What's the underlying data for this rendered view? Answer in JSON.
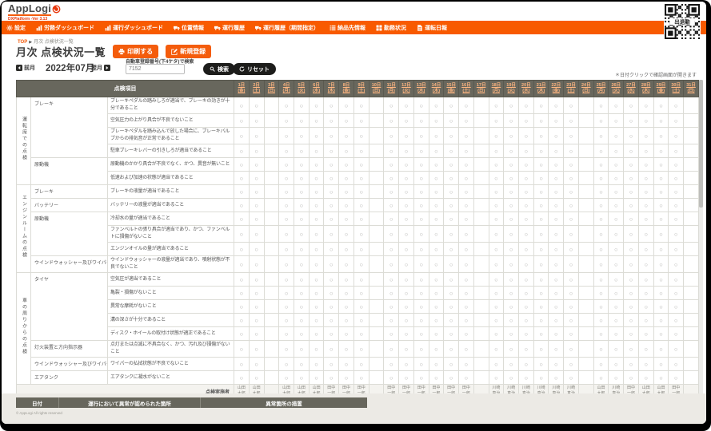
{
  "app": {
    "logo": "AppLogi",
    "version": "DXPlatform -Ver 3.13",
    "qr_label": "出退勤"
  },
  "colors": {
    "nav_orange": "#f85a00",
    "accent_orange": "#f45c0c",
    "logo_red": "#e8380d",
    "table_header_bg": "#68675d",
    "date_link": "#ffb681",
    "pill_black": "#1d1d1b"
  },
  "nav": {
    "items": [
      {
        "label": "設定",
        "icon": "gear-icon"
      },
      {
        "label": "労務ダッシュボード",
        "icon": "chart-icon"
      },
      {
        "label": "運行ダッシュボード",
        "icon": "chart-icon"
      },
      {
        "label": "位置情報",
        "icon": "truck-icon"
      },
      {
        "label": "運行履歴",
        "icon": "truck-icon"
      },
      {
        "label": "運行履歴（期間指定）",
        "icon": "truck-icon"
      },
      {
        "label": "納品先情報",
        "icon": "list-icon"
      },
      {
        "label": "勤務状況",
        "icon": "grid-icon"
      },
      {
        "label": "運転日報",
        "icon": "document-icon"
      }
    ]
  },
  "breadcrumb": {
    "home": "TOP",
    "current": "月次 点検状況一覧"
  },
  "page": {
    "title": "月次 点検状況一覧",
    "print_button": "印刷する",
    "new_button": "新規登録",
    "prev_month": "前月",
    "month": "2022年07月",
    "next_month": "翌月",
    "search_label": "自動車登録番号(下4ケタ)で検索",
    "search_value": "7152",
    "search_button": "検索",
    "reset_button": "リセット",
    "note": "＊日付クリックで確認画面が開きます"
  },
  "table": {
    "header_left": "点検項目",
    "check_mark": "○",
    "no_check_days": [
      3,
      10,
      17,
      24,
      31
    ],
    "days": [
      {
        "d": "1日",
        "w": "(金)"
      },
      {
        "d": "2日",
        "w": "(土)"
      },
      {
        "d": "3日",
        "w": "(日)"
      },
      {
        "d": "4日",
        "w": "(月)"
      },
      {
        "d": "5日",
        "w": "(火)"
      },
      {
        "d": "6日",
        "w": "(水)"
      },
      {
        "d": "7日",
        "w": "(木)"
      },
      {
        "d": "8日",
        "w": "(金)"
      },
      {
        "d": "9日",
        "w": "(土)"
      },
      {
        "d": "10日",
        "w": "(日)"
      },
      {
        "d": "11日",
        "w": "(月)"
      },
      {
        "d": "12日",
        "w": "(火)"
      },
      {
        "d": "13日",
        "w": "(水)"
      },
      {
        "d": "14日",
        "w": "(木)"
      },
      {
        "d": "15日",
        "w": "(金)"
      },
      {
        "d": "16日",
        "w": "(土)"
      },
      {
        "d": "17日",
        "w": "(日)"
      },
      {
        "d": "18日",
        "w": "(月)"
      },
      {
        "d": "19日",
        "w": "(火)"
      },
      {
        "d": "20日",
        "w": "(水)"
      },
      {
        "d": "21日",
        "w": "(木)"
      },
      {
        "d": "22日",
        "w": "(金)"
      },
      {
        "d": "23日",
        "w": "(土)"
      },
      {
        "d": "24日",
        "w": "(日)"
      },
      {
        "d": "25日",
        "w": "(月)"
      },
      {
        "d": "26日",
        "w": "(火)"
      },
      {
        "d": "27日",
        "w": "(水)"
      },
      {
        "d": "28日",
        "w": "(木)"
      },
      {
        "d": "29日",
        "w": "(金)"
      },
      {
        "d": "30日",
        "w": "(土)"
      },
      {
        "d": "31日",
        "w": "(日)"
      }
    ],
    "sections": [
      {
        "name": "運転席での点検",
        "groups": [
          {
            "category": "ブレーキ",
            "items": [
              "ブレーキペダルの踏みしろが適当で、ブレーキの効きが十分であること",
              "空気圧力の上がり具合が不良でないこと",
              "ブレーキペダルを踏み込んで放した場合に、ブレーキバルブからの排気音が正常であること",
              "駐車ブレーキレバーの引きしろが適当であること"
            ]
          },
          {
            "category": "原動機",
            "items": [
              "原動機のかかり具合が不良でなく、かつ、異音が無いこと",
              "低速および加速の状態が適当であること"
            ]
          }
        ]
      },
      {
        "name": "エンジンルームの点検",
        "groups": [
          {
            "category": "ブレーキ",
            "items": [
              "ブレーキの液量が適当であること"
            ]
          },
          {
            "category": "バッテリー",
            "items": [
              "バッテリーの液量が適当であること"
            ]
          },
          {
            "category": "原動機",
            "items": [
              "冷却水の量が適当であること",
              "ファンベルトの張り具合が適当であり、かつ、ファンベルトに損傷がないこと",
              "エンジンオイルの量が適当であること"
            ]
          },
          {
            "category": "ウインドウォッシャー及びワイパー",
            "items": [
              "ウインドウォッシャーの液量が適当であり、噴射状態が不良でないこと"
            ]
          }
        ]
      },
      {
        "name": "車の周りからの点検",
        "groups": [
          {
            "category": "タイヤ",
            "items": [
              "空気圧が適当であること",
              "亀裂・損傷がないこと",
              "異常な摩耗がないこと",
              "溝の深さが十分であること",
              "ディスク・ホイールの取付け状態が適正であること"
            ]
          },
          {
            "category": "灯火装置と方向指示器",
            "items": [
              "点灯または点滅に不具合なく、かつ、汚れ及び損傷がないこと"
            ]
          },
          {
            "category": "ウインドウォッシャー及びワイパー",
            "items": [
              "ワイパーの払拭状態が不良でないこと"
            ]
          },
          {
            "category": "エアタンク",
            "items": [
              "エアタンクに凝水がないこと"
            ]
          }
        ]
      }
    ],
    "inspector_label": "点検実施者",
    "inspectors": [
      "山田\n太郎",
      "山田\n太郎",
      "",
      "山田\n太郎",
      "山田\n太郎",
      "山田\n太郎",
      "田中\n一郎",
      "田中\n一郎",
      "田中\n一郎",
      "",
      "田中\n一郎",
      "田中\n一郎",
      "田中\n一郎",
      "田中\n一郎",
      "田中\n一郎",
      "田中\n一郎",
      "",
      "川崎\n真治",
      "川崎\n真治",
      "川崎\n真治",
      "川崎\n真治",
      "川崎\n真治",
      "川崎\n真治",
      "",
      "山田\n太郎",
      "川崎\n真治",
      "田中\n一郎",
      "山田\n太郎",
      "山田\n太郎",
      "田中\n一郎",
      ""
    ]
  },
  "bottom_table": {
    "headers": [
      "日付",
      "運行において異常が認められた箇所",
      "異常箇所の措置"
    ]
  },
  "footer": {
    "copyright": "© AppLogi All rights reserved"
  }
}
